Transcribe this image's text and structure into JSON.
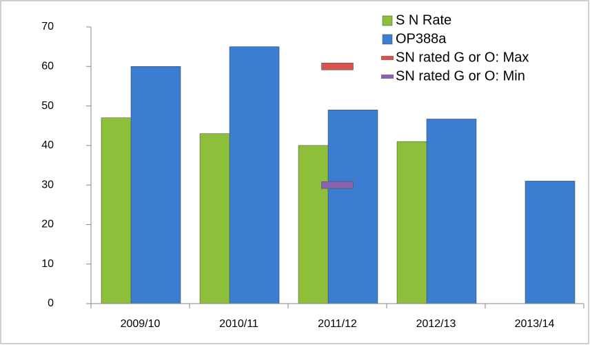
{
  "chart_data": {
    "type": "bar",
    "categories": [
      "2009/10",
      "2010/11",
      "2011/12",
      "2012/13",
      "2013/14"
    ],
    "series": [
      {
        "name": "S N Rate",
        "color": "#8dbf3b",
        "values": [
          47,
          43,
          40,
          41,
          null
        ]
      },
      {
        "name": "OP388a",
        "color": "#3b7dd0",
        "values": [
          60,
          65,
          49,
          46.7,
          31
        ]
      },
      {
        "name": "SN rated G or O: Max",
        "color": "#d9534f",
        "marker": "dash",
        "values": [
          null,
          null,
          60,
          null,
          null
        ]
      },
      {
        "name": "SN rated G or O: Min",
        "color": "#8a64b0",
        "marker": "dash",
        "values": [
          null,
          null,
          30,
          null,
          null
        ]
      }
    ],
    "ylim": [
      0,
      70
    ],
    "yticks": [
      0,
      10,
      20,
      30,
      40,
      50,
      60,
      70
    ]
  }
}
